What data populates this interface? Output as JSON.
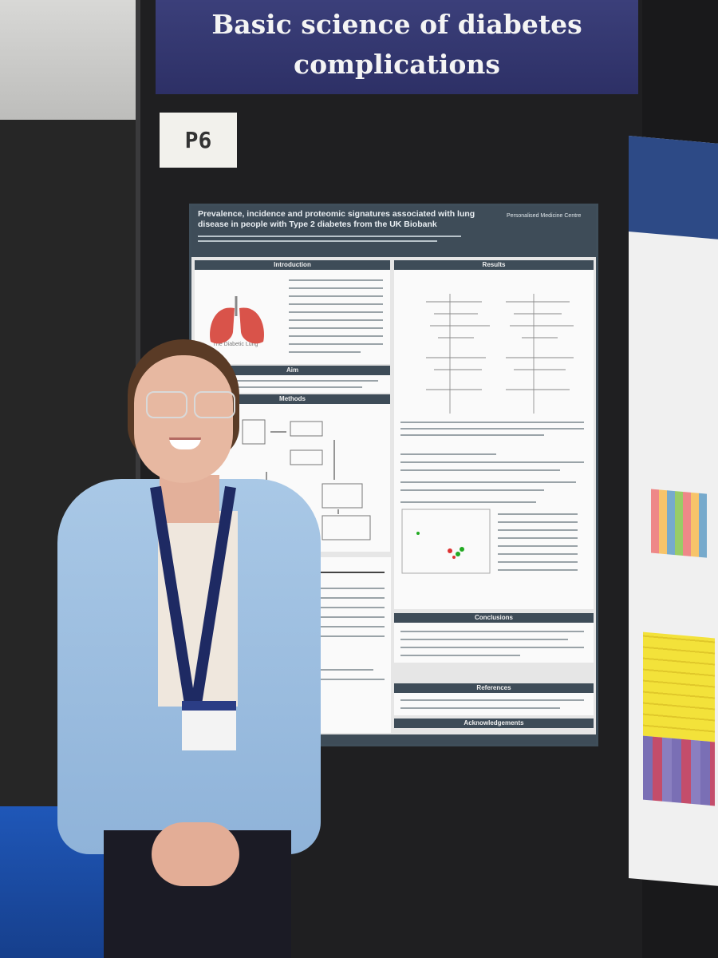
{
  "banner": {
    "line1": "Basic science of diabetes",
    "line2": "complications"
  },
  "board_number": "P6",
  "poster": {
    "title": "Prevalence, incidence and proteomic signatures associated with lung disease in people with Type 2 diabetes from the UK Biobank",
    "logo_text": "Personalised Medicine Centre",
    "sections": {
      "introduction": "Introduction",
      "results": "Results",
      "aim": "Aim",
      "methods": "Methods",
      "conclusions": "Conclusions",
      "references": "References",
      "acknowledgements": "Acknowledgements"
    },
    "intro_image_caption": "The Diabetic Lung"
  },
  "colors": {
    "banner": "#2d3066",
    "poster_header": "#3e4c58",
    "shirt": "#9dbfe2",
    "floor": "#1f57b8"
  }
}
